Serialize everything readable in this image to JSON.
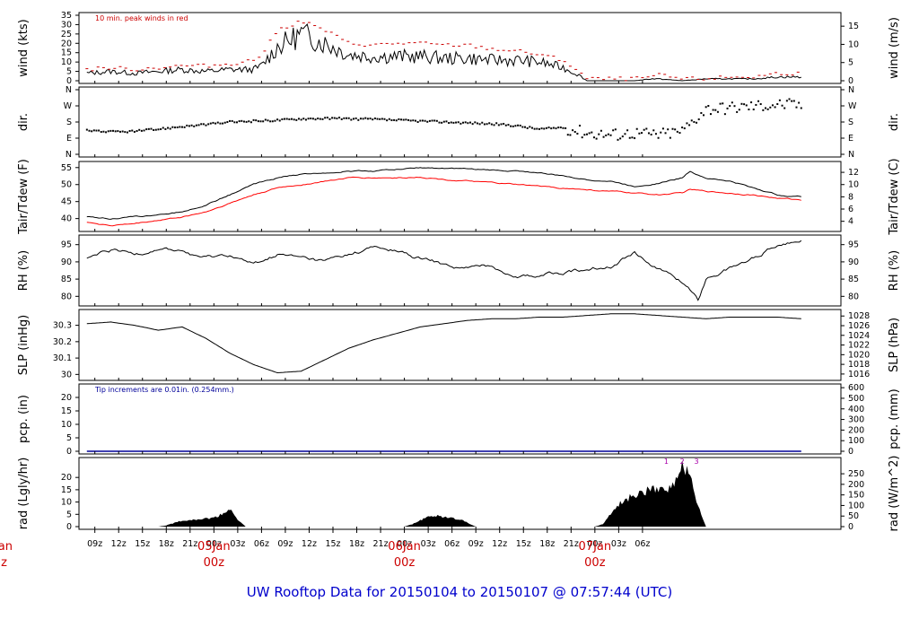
{
  "footer": "UW Rooftop Data for 20150104  to  20150107 @ 07:57:44  (UTC)",
  "x_axis": {
    "hour_labels": [
      "09z",
      "12z",
      "15z",
      "18z",
      "21z",
      "00z",
      "03z",
      "06z",
      "09z",
      "12z",
      "15z",
      "18z",
      "21z",
      "00z",
      "03z",
      "06z",
      "09z",
      "12z",
      "15z",
      "18z",
      "21z",
      "00z",
      "03z",
      "06z"
    ],
    "day_labels": [
      {
        "hour_index": -1,
        "date": "Jan",
        "hour": "z",
        "note": "cut off at left edge"
      },
      {
        "hour_index": 5,
        "date": "05Jan",
        "hour": "00z"
      },
      {
        "hour_index": 13,
        "date": "06Jan",
        "hour": "00z"
      },
      {
        "hour_index": 21,
        "date": "07Jan",
        "hour": "00z"
      }
    ]
  },
  "chart_data": [
    {
      "type": "line",
      "panel": "wind",
      "ylabel": "wind (kts)",
      "ylabel_right": "wind (m/s)",
      "ylim": [
        0,
        35
      ],
      "yticks": [
        0,
        5,
        10,
        15,
        20,
        25,
        30,
        35
      ],
      "ylim_right": [
        0,
        18
      ],
      "yticks_right": [
        0,
        5,
        10,
        15
      ],
      "annotation": "10 min. peak winds in red",
      "series": [
        {
          "name": "wind speed",
          "color": "#000000",
          "x_hours": [
            0,
            3,
            6,
            9,
            12,
            15,
            18,
            21,
            22,
            23,
            24,
            27,
            30,
            33,
            36,
            39,
            42,
            45,
            48,
            51,
            54,
            57,
            60,
            62,
            63,
            66,
            69,
            71,
            72,
            75,
            78,
            81,
            84,
            87,
            90
          ],
          "values": [
            4,
            5,
            4,
            5,
            6,
            5,
            6,
            6,
            8,
            13,
            18,
            25,
            20,
            14,
            13,
            13,
            13,
            12,
            12,
            11,
            11,
            10,
            7,
            3,
            0,
            0,
            0,
            1,
            1,
            0,
            1,
            1,
            1,
            2,
            2
          ]
        },
        {
          "name": "10 min. peak winds",
          "color": "#cc0000",
          "x_hours": [
            0,
            3,
            6,
            9,
            12,
            15,
            18,
            21,
            22,
            23,
            24,
            27,
            30,
            33,
            36,
            39,
            42,
            45,
            48,
            51,
            54,
            57,
            60,
            62,
            63,
            66,
            69,
            71,
            72,
            75,
            78,
            81,
            84,
            87,
            90
          ],
          "values": [
            6,
            7,
            6,
            7,
            8,
            8,
            9,
            11,
            14,
            20,
            27,
            32,
            27,
            20,
            19,
            20,
            20,
            19,
            19,
            17,
            16,
            14,
            11,
            5,
            1,
            1,
            1,
            2,
            3,
            1,
            1,
            2,
            2,
            4,
            4
          ]
        }
      ]
    },
    {
      "type": "scatter",
      "panel": "dir",
      "ylabel": "dir.",
      "ylabel_right": "dir.",
      "yticks": [
        "N",
        "E",
        "S",
        "W",
        "N"
      ],
      "yticks_right": [
        "N",
        "E",
        "S",
        "W",
        "N"
      ],
      "series": [
        {
          "name": "direction",
          "color": "#000000",
          "x_hours": [
            0,
            3,
            6,
            9,
            12,
            15,
            18,
            21,
            24,
            27,
            30,
            33,
            36,
            39,
            42,
            45,
            48,
            51,
            54,
            57,
            60,
            63,
            66,
            69,
            72,
            75,
            78,
            81,
            84,
            87,
            90
          ],
          "values_deg": [
            135,
            125,
            128,
            140,
            155,
            165,
            180,
            185,
            190,
            198,
            200,
            198,
            195,
            190,
            185,
            180,
            175,
            170,
            160,
            140,
            150,
            120,
            110,
            120,
            110,
            130,
            255,
            260,
            270,
            280,
            275
          ]
        }
      ]
    },
    {
      "type": "line",
      "panel": "temperature",
      "ylabel": "Tair/Tdew (F)",
      "ylabel_right": "Tair/Tdew (C)",
      "ylim": [
        37,
        56
      ],
      "yticks": [
        40,
        45,
        50,
        55
      ],
      "yticks_right": [
        4,
        6,
        8,
        10,
        12
      ],
      "series": [
        {
          "name": "Tair",
          "color": "#000000",
          "x_hours": [
            0,
            3,
            6,
            9,
            12,
            15,
            18,
            21,
            24,
            27,
            30,
            33,
            36,
            39,
            42,
            45,
            48,
            51,
            54,
            57,
            60,
            63,
            66,
            69,
            72,
            75,
            76,
            78,
            81,
            84,
            87,
            90
          ],
          "values": [
            40.5,
            40,
            40.5,
            41,
            42,
            44,
            47,
            50,
            52,
            53,
            53.5,
            54,
            54,
            54.5,
            55,
            54.8,
            54.5,
            54.2,
            54,
            53.5,
            52.5,
            51.5,
            51,
            49.5,
            50.5,
            52,
            54,
            52,
            51,
            49,
            47,
            46.5
          ]
        },
        {
          "name": "Tdew",
          "color": "#ff0000",
          "x_hours": [
            0,
            3,
            6,
            9,
            12,
            15,
            18,
            21,
            24,
            27,
            30,
            33,
            36,
            39,
            42,
            45,
            48,
            51,
            54,
            57,
            60,
            63,
            66,
            69,
            72,
            75,
            76,
            78,
            81,
            84,
            87,
            90
          ],
          "values": [
            39,
            38,
            38.5,
            39.5,
            40.5,
            42,
            44.5,
            47,
            49,
            50,
            51,
            52,
            52,
            52,
            52.3,
            51.5,
            51,
            50.5,
            50,
            49.5,
            49,
            48.5,
            48,
            47.5,
            47,
            47.5,
            48.5,
            48,
            47.5,
            47,
            46,
            45.5
          ]
        }
      ]
    },
    {
      "type": "line",
      "panel": "RH",
      "ylabel": "RH (%)",
      "ylabel_right": "RH (%)",
      "ylim": [
        78,
        97
      ],
      "yticks": [
        80,
        85,
        90,
        95
      ],
      "series": [
        {
          "name": "RH",
          "color": "#000000",
          "x_hours": [
            0,
            3,
            6,
            9,
            12,
            15,
            18,
            21,
            24,
            27,
            30,
            33,
            36,
            39,
            42,
            45,
            48,
            51,
            54,
            57,
            60,
            63,
            66,
            69,
            72,
            75,
            76,
            77,
            78,
            81,
            84,
            87,
            90
          ],
          "values": [
            91,
            93,
            92,
            94,
            93,
            91,
            92,
            89,
            92,
            91,
            90,
            92,
            94,
            93,
            91,
            89,
            88,
            89,
            86,
            86,
            87,
            88,
            89,
            93,
            88,
            84,
            82,
            79,
            85,
            88,
            91,
            95,
            97
          ]
        }
      ]
    },
    {
      "type": "line",
      "panel": "SLP",
      "ylabel": "SLP (inHg)",
      "ylabel_right": "SLP (hPa)",
      "ylim": [
        29.98,
        30.38
      ],
      "yticks": [
        30.0,
        30.1,
        30.2,
        30.3
      ],
      "yticks_right": [
        1016,
        1018,
        1020,
        1022,
        1024,
        1026,
        1028
      ],
      "series": [
        {
          "name": "SLP",
          "color": "#000000",
          "x_hours": [
            0,
            3,
            6,
            9,
            12,
            15,
            18,
            21,
            24,
            27,
            30,
            33,
            36,
            39,
            42,
            45,
            48,
            51,
            54,
            57,
            60,
            63,
            66,
            69,
            72,
            75,
            78,
            81,
            84,
            87,
            90
          ],
          "values": [
            30.31,
            30.32,
            30.3,
            30.27,
            30.29,
            30.22,
            30.13,
            30.06,
            30.01,
            30.02,
            30.09,
            30.16,
            30.21,
            30.25,
            30.29,
            30.31,
            30.33,
            30.34,
            30.34,
            30.35,
            30.35,
            30.36,
            30.37,
            30.37,
            30.36,
            30.35,
            30.34,
            30.35,
            30.35,
            30.35,
            30.34
          ]
        }
      ]
    },
    {
      "type": "line",
      "panel": "precipitation",
      "ylabel": "pcp. (in)",
      "ylabel_right": "pcp. (mm)",
      "ylim": [
        0,
        24
      ],
      "yticks": [
        0,
        5,
        10,
        15,
        20
      ],
      "yticks_right": [
        0,
        100,
        200,
        300,
        400,
        500,
        600
      ],
      "annotation": "Tip increments are 0.01in. (0.254mm.)",
      "series": [
        {
          "name": "pcp",
          "color": "#000099",
          "x_hours": [
            0,
            90
          ],
          "values": [
            0,
            0
          ]
        }
      ]
    },
    {
      "type": "area",
      "panel": "radiation",
      "ylabel": "rad (Lgly/hr)",
      "ylabel_right": "rad (W/m^2)",
      "ylim": [
        0,
        27
      ],
      "yticks": [
        0,
        5,
        10,
        15,
        20
      ],
      "yticks_right": [
        0,
        50,
        100,
        150,
        200,
        250
      ],
      "markers": [
        "1",
        "2",
        "3"
      ],
      "series": [
        {
          "name": "radiation",
          "color": "#000000",
          "x_hours": [
            0,
            9,
            10,
            11,
            12,
            14,
            16,
            17,
            18,
            19,
            20,
            40,
            41,
            42,
            43,
            44,
            45,
            46,
            47,
            48,
            49,
            64,
            65,
            66,
            67,
            68,
            69,
            70,
            71,
            72,
            73,
            74,
            75,
            76,
            77,
            78,
            90
          ],
          "values": [
            0,
            0,
            0.5,
            1.5,
            2.5,
            3,
            3.5,
            5,
            7,
            3,
            0,
            0,
            1,
            2.5,
            4,
            4.5,
            4,
            3.5,
            3,
            1.5,
            0,
            0,
            1,
            5,
            9,
            11,
            13,
            14,
            15,
            16,
            15,
            17,
            26,
            20,
            8,
            0,
            0
          ]
        }
      ]
    }
  ]
}
